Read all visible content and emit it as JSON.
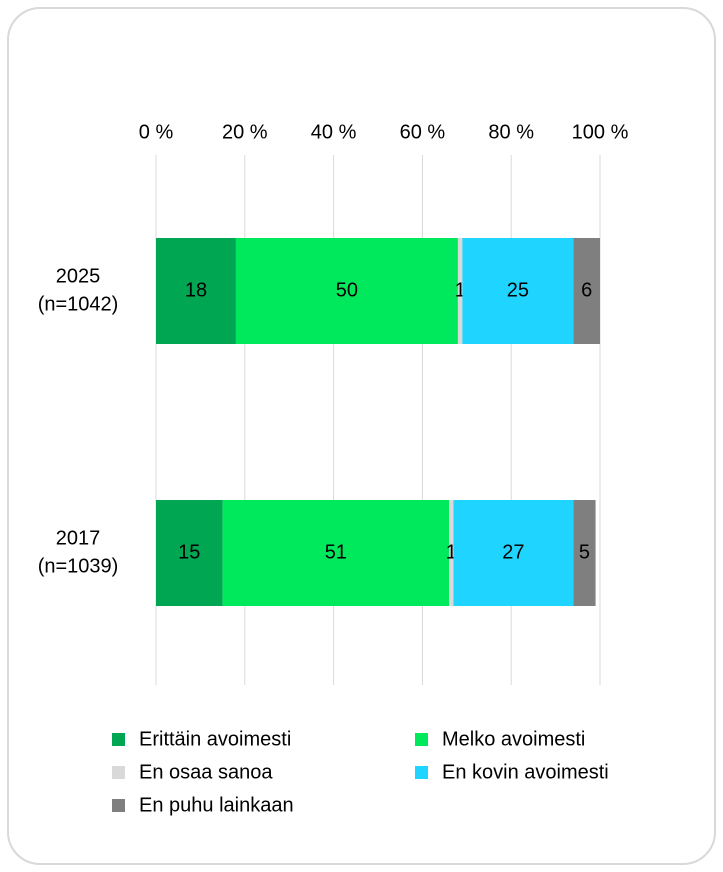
{
  "chart_data": {
    "type": "stacked_bar_horizontal",
    "categories": [
      [
        "2025",
        "(n=1042)"
      ],
      [
        "2017",
        "(n=1039)"
      ]
    ],
    "series": [
      {
        "name": "Erittäin avoimesti",
        "color": "#00a651",
        "values": [
          18,
          15
        ]
      },
      {
        "name": "Melko avoimesti",
        "color": "#00e85c",
        "values": [
          50,
          51
        ]
      },
      {
        "name": "En osaa sanoa",
        "color": "#d9d9d9",
        "values": [
          1,
          1
        ]
      },
      {
        "name": "En kovin avoimesti",
        "color": "#1fd5ff",
        "values": [
          25,
          27
        ]
      },
      {
        "name": "En puhu lainkaan",
        "color": "#7f7f7f",
        "values": [
          6,
          5
        ]
      }
    ],
    "xlim": [
      0,
      100
    ],
    "xticks": [
      {
        "value": 0,
        "label": "0 %"
      },
      {
        "value": 20,
        "label": "20 %"
      },
      {
        "value": 40,
        "label": "40 %"
      },
      {
        "value": 60,
        "label": "60 %"
      },
      {
        "value": 80,
        "label": "80 %"
      },
      {
        "value": 100,
        "label": "100 %"
      }
    ],
    "grid": true,
    "legend": "bottom"
  }
}
